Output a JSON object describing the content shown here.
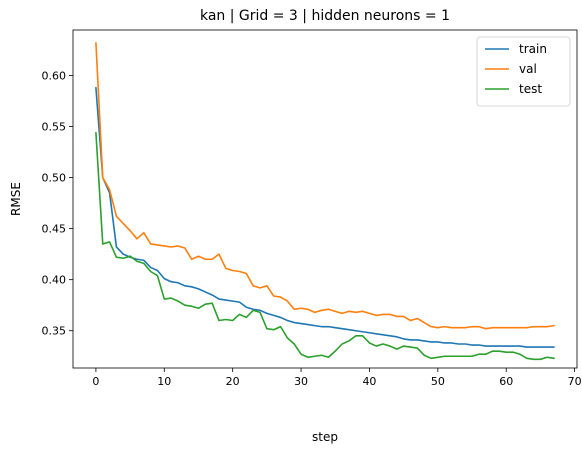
{
  "chart_data": {
    "type": "line",
    "title": "kan | Grid = 3 | hidden neurons = 1",
    "xlabel": "step",
    "ylabel": "RMSE",
    "xlim": [
      -3.35,
      70.35
    ],
    "ylim": [
      0.3135,
      0.6445
    ],
    "xticks": [
      0,
      10,
      20,
      30,
      40,
      50,
      60,
      70
    ],
    "yticks": [
      0.35,
      0.4,
      0.45,
      0.5,
      0.55,
      0.6
    ],
    "ytick_labels": [
      "0.35",
      "0.40",
      "0.45",
      "0.50",
      "0.55",
      "0.60"
    ],
    "grid": false,
    "legend_position": "top-right",
    "x": [
      0,
      1,
      2,
      3,
      4,
      5,
      6,
      7,
      8,
      9,
      10,
      11,
      12,
      13,
      14,
      15,
      16,
      17,
      18,
      19,
      20,
      21,
      22,
      23,
      24,
      25,
      26,
      27,
      28,
      29,
      30,
      31,
      32,
      33,
      34,
      35,
      36,
      37,
      38,
      39,
      40,
      41,
      42,
      43,
      44,
      45,
      46,
      47,
      48,
      49,
      50,
      51,
      52,
      53,
      54,
      55,
      56,
      57,
      58,
      59,
      60,
      61,
      62,
      63,
      64,
      65,
      66,
      67
    ],
    "series": [
      {
        "name": "train",
        "color": "#1f77b4",
        "values": [
          0.588,
          0.5,
          0.485,
          0.432,
          0.425,
          0.422,
          0.42,
          0.419,
          0.412,
          0.409,
          0.401,
          0.398,
          0.397,
          0.394,
          0.393,
          0.391,
          0.388,
          0.385,
          0.381,
          0.38,
          0.379,
          0.378,
          0.373,
          0.371,
          0.37,
          0.367,
          0.365,
          0.363,
          0.36,
          0.358,
          0.357,
          0.356,
          0.355,
          0.354,
          0.354,
          0.353,
          0.352,
          0.351,
          0.35,
          0.349,
          0.348,
          0.347,
          0.346,
          0.345,
          0.344,
          0.342,
          0.341,
          0.341,
          0.34,
          0.339,
          0.339,
          0.338,
          0.338,
          0.337,
          0.337,
          0.336,
          0.336,
          0.335,
          0.335,
          0.335,
          0.335,
          0.335,
          0.335,
          0.334,
          0.334,
          0.334,
          0.334,
          0.334
        ]
      },
      {
        "name": "val",
        "color": "#ff7f0e",
        "values": [
          0.632,
          0.5,
          0.488,
          0.462,
          0.455,
          0.448,
          0.44,
          0.446,
          0.435,
          0.434,
          0.433,
          0.432,
          0.433,
          0.431,
          0.42,
          0.423,
          0.42,
          0.42,
          0.425,
          0.411,
          0.409,
          0.408,
          0.406,
          0.394,
          0.392,
          0.394,
          0.384,
          0.383,
          0.379,
          0.371,
          0.372,
          0.371,
          0.368,
          0.37,
          0.371,
          0.369,
          0.367,
          0.369,
          0.368,
          0.369,
          0.367,
          0.365,
          0.366,
          0.366,
          0.364,
          0.364,
          0.36,
          0.362,
          0.358,
          0.354,
          0.353,
          0.354,
          0.353,
          0.353,
          0.353,
          0.354,
          0.354,
          0.352,
          0.353,
          0.353,
          0.353,
          0.353,
          0.353,
          0.353,
          0.354,
          0.354,
          0.354,
          0.355
        ]
      },
      {
        "name": "test",
        "color": "#2ca02c",
        "values": [
          0.544,
          0.435,
          0.437,
          0.422,
          0.421,
          0.423,
          0.418,
          0.416,
          0.408,
          0.404,
          0.381,
          0.382,
          0.379,
          0.375,
          0.374,
          0.372,
          0.376,
          0.377,
          0.36,
          0.361,
          0.36,
          0.366,
          0.363,
          0.37,
          0.368,
          0.352,
          0.351,
          0.354,
          0.343,
          0.337,
          0.327,
          0.324,
          0.325,
          0.326,
          0.324,
          0.33,
          0.337,
          0.34,
          0.345,
          0.345,
          0.338,
          0.335,
          0.337,
          0.335,
          0.332,
          0.335,
          0.334,
          0.333,
          0.326,
          0.323,
          0.324,
          0.325,
          0.325,
          0.325,
          0.325,
          0.325,
          0.327,
          0.327,
          0.33,
          0.33,
          0.329,
          0.329,
          0.327,
          0.323,
          0.322,
          0.322,
          0.324,
          0.323
        ]
      }
    ]
  }
}
